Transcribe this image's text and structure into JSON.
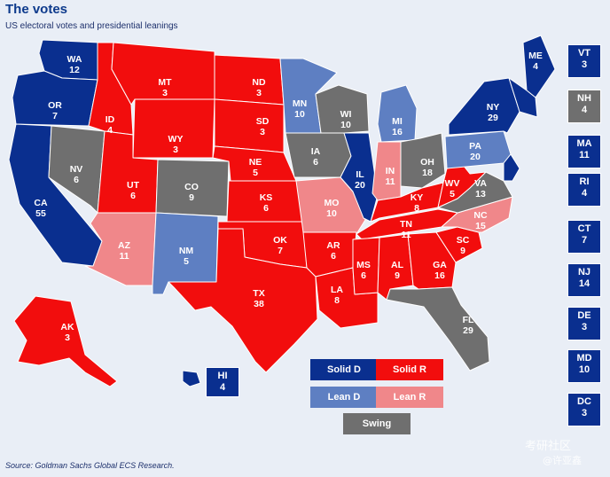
{
  "title": "The votes",
  "subtitle": "US electoral votes and presidential leanings",
  "source": "Source: Goldman Sachs Global ECS Research.",
  "watermark": {
    "line1": "考研社区",
    "line2": "@许亚鑫"
  },
  "colors": {
    "solid_d": "#0a2f8f",
    "solid_r": "#f20d0d",
    "lean_d": "#5e7fc2",
    "lean_r": "#f0878a",
    "swing": "#6f6f6f"
  },
  "legend": {
    "solid_d": "Solid D",
    "solid_r": "Solid R",
    "lean_d": "Lean D",
    "lean_r": "Lean R",
    "swing": "Swing"
  },
  "states": [
    {
      "abbr": "WA",
      "votes": "12",
      "cat": "solid_d"
    },
    {
      "abbr": "OR",
      "votes": "7",
      "cat": "solid_d"
    },
    {
      "abbr": "CA",
      "votes": "55",
      "cat": "solid_d"
    },
    {
      "abbr": "NV",
      "votes": "6",
      "cat": "swing"
    },
    {
      "abbr": "ID",
      "votes": "4",
      "cat": "solid_r"
    },
    {
      "abbr": "MT",
      "votes": "3",
      "cat": "solid_r"
    },
    {
      "abbr": "WY",
      "votes": "3",
      "cat": "solid_r"
    },
    {
      "abbr": "UT",
      "votes": "6",
      "cat": "solid_r"
    },
    {
      "abbr": "AZ",
      "votes": "11",
      "cat": "lean_r"
    },
    {
      "abbr": "CO",
      "votes": "9",
      "cat": "swing"
    },
    {
      "abbr": "NM",
      "votes": "5",
      "cat": "lean_d"
    },
    {
      "abbr": "ND",
      "votes": "3",
      "cat": "solid_r"
    },
    {
      "abbr": "SD",
      "votes": "3",
      "cat": "solid_r"
    },
    {
      "abbr": "NE",
      "votes": "5",
      "cat": "solid_r"
    },
    {
      "abbr": "KS",
      "votes": "6",
      "cat": "solid_r"
    },
    {
      "abbr": "OK",
      "votes": "7",
      "cat": "solid_r"
    },
    {
      "abbr": "TX",
      "votes": "38",
      "cat": "solid_r"
    },
    {
      "abbr": "MN",
      "votes": "10",
      "cat": "lean_d"
    },
    {
      "abbr": "IA",
      "votes": "6",
      "cat": "swing"
    },
    {
      "abbr": "MO",
      "votes": "10",
      "cat": "lean_r"
    },
    {
      "abbr": "AR",
      "votes": "6",
      "cat": "solid_r"
    },
    {
      "abbr": "LA",
      "votes": "8",
      "cat": "solid_r"
    },
    {
      "abbr": "WI",
      "votes": "10",
      "cat": "swing"
    },
    {
      "abbr": "IL",
      "votes": "20",
      "cat": "solid_d"
    },
    {
      "abbr": "MI",
      "votes": "16",
      "cat": "lean_d"
    },
    {
      "abbr": "IN",
      "votes": "11",
      "cat": "lean_r"
    },
    {
      "abbr": "OH",
      "votes": "18",
      "cat": "swing"
    },
    {
      "abbr": "KY",
      "votes": "8",
      "cat": "solid_r"
    },
    {
      "abbr": "TN",
      "votes": "11",
      "cat": "solid_r"
    },
    {
      "abbr": "MS",
      "votes": "6",
      "cat": "solid_r"
    },
    {
      "abbr": "AL",
      "votes": "9",
      "cat": "solid_r"
    },
    {
      "abbr": "GA",
      "votes": "16",
      "cat": "solid_r"
    },
    {
      "abbr": "FL",
      "votes": "29",
      "cat": "swing"
    },
    {
      "abbr": "SC",
      "votes": "9",
      "cat": "solid_r"
    },
    {
      "abbr": "NC",
      "votes": "15",
      "cat": "lean_r"
    },
    {
      "abbr": "VA",
      "votes": "13",
      "cat": "swing"
    },
    {
      "abbr": "WV",
      "votes": "5",
      "cat": "solid_r"
    },
    {
      "abbr": "PA",
      "votes": "20",
      "cat": "lean_d"
    },
    {
      "abbr": "NY",
      "votes": "29",
      "cat": "solid_d"
    },
    {
      "abbr": "ME",
      "votes": "4",
      "cat": "solid_d"
    },
    {
      "abbr": "AK",
      "votes": "3",
      "cat": "solid_r"
    },
    {
      "abbr": "HI",
      "votes": "4",
      "cat": "solid_d"
    }
  ],
  "side_boxes": [
    {
      "abbr": "VT",
      "votes": "3",
      "cat": "solid_d"
    },
    {
      "abbr": "NH",
      "votes": "4",
      "cat": "swing"
    },
    {
      "abbr": "MA",
      "votes": "11",
      "cat": "solid_d"
    },
    {
      "abbr": "RI",
      "votes": "4",
      "cat": "solid_d"
    },
    {
      "abbr": "CT",
      "votes": "7",
      "cat": "solid_d"
    },
    {
      "abbr": "NJ",
      "votes": "14",
      "cat": "solid_d"
    },
    {
      "abbr": "DE",
      "votes": "3",
      "cat": "solid_d"
    },
    {
      "abbr": "MD",
      "votes": "10",
      "cat": "solid_d"
    },
    {
      "abbr": "DC",
      "votes": "3",
      "cat": "solid_d"
    }
  ]
}
